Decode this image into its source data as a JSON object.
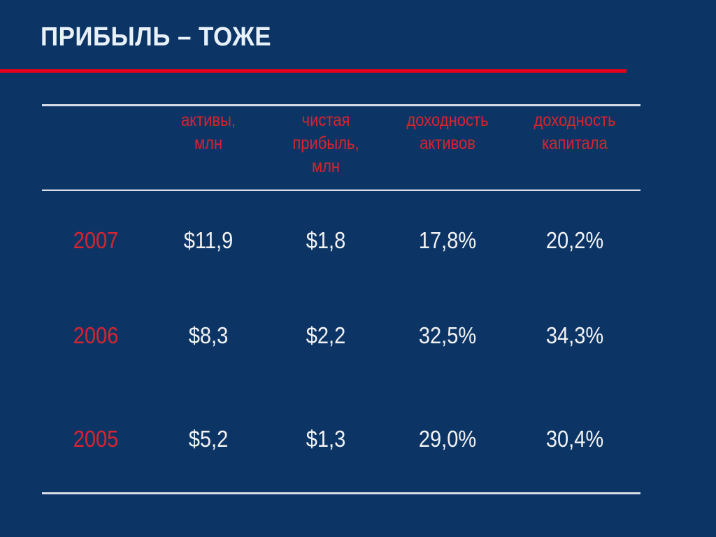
{
  "slide": {
    "title": "ПРИБЫЛЬ – ТОЖЕ",
    "accent_color": "#e4001b",
    "background_color": "#0c3566"
  },
  "table": {
    "headers": [
      "",
      "активы,\nмлн",
      "чистая\nприбыль,\nмлн",
      "доходность\nактивов",
      "доходность\nкапитала"
    ],
    "rows": [
      {
        "year": "2007",
        "assets": "$11,9",
        "net_profit": "$1,8",
        "roa": "17,8%",
        "roe": "20,2%"
      },
      {
        "year": "2006",
        "assets": "$8,3",
        "net_profit": "$2,2",
        "roa": "32,5%",
        "roe": "34,3%"
      },
      {
        "year": "2005",
        "assets": "$5,2",
        "net_profit": "$1,3",
        "roa": "29,0%",
        "roe": "30,4%"
      }
    ]
  }
}
